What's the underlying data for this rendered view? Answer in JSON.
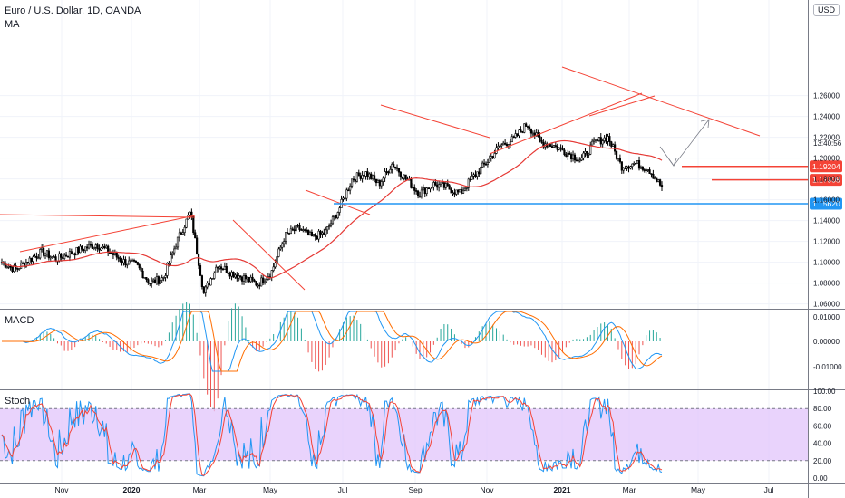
{
  "header": {
    "symbol_title": "Euro / U.S. Dollar, 1D, OANDA",
    "indicator": "MA",
    "currency_button": "USD"
  },
  "panes": {
    "macd_label": "MACD",
    "stoch_label": "Stoch"
  },
  "colors": {
    "candle": "#000000",
    "ma": "#e53935",
    "trendline": "#f44336",
    "support": "#2196f3",
    "macd_line": "#2196f3",
    "signal_line": "#ff6d00",
    "hist_pos": "#26a69a",
    "hist_neg": "#ef5350",
    "k_line": "#2196f3",
    "d_line": "#f44336",
    "stoch_band": "#e1c4fb",
    "projection": "#787b86"
  },
  "chart_data": [
    {
      "type": "candlestick",
      "title": "Euro / U.S. Dollar, 1D, OANDA",
      "x_axis": [
        "Nov",
        "2020",
        "Mar",
        "May",
        "Jul",
        "Sep",
        "Nov",
        "2021",
        "Mar",
        "May",
        "Jul"
      ],
      "y_ticks": [
        "1.26000",
        "1.24000",
        "1.22000",
        "1.20000",
        "1.18000",
        "1.16000",
        "1.14000",
        "1.12000",
        "1.10000",
        "1.08000",
        "1.06000"
      ],
      "ylim": [
        1.05,
        1.27
      ],
      "price_labels": [
        {
          "value": "1.19204",
          "color": "#f44336"
        },
        {
          "value": "1.17908",
          "color": "#f44336"
        },
        {
          "value": "1.15620",
          "color": "#2196f3"
        }
      ],
      "countdown": "13:40:56",
      "close_path": [
        [
          "Oct",
          1.1
        ],
        [
          "Oct",
          1.093
        ],
        [
          "Nov",
          1.102
        ],
        [
          "Nov",
          1.11
        ],
        [
          "Nov",
          1.103
        ],
        [
          "Dec",
          1.108
        ],
        [
          "Dec",
          1.113
        ],
        [
          "2020",
          1.117
        ],
        [
          "Jan",
          1.11
        ],
        [
          "Jan",
          1.101
        ],
        [
          "Feb",
          1.097
        ],
        [
          "Feb",
          1.08
        ],
        [
          "Feb",
          1.085
        ],
        [
          "Mar",
          1.12
        ],
        [
          "Mar",
          1.148
        ],
        [
          "Mar",
          1.07
        ],
        [
          "Mar",
          1.098
        ],
        [
          "Apr",
          1.09
        ],
        [
          "Apr",
          1.085
        ],
        [
          "May",
          1.079
        ],
        [
          "May",
          1.09
        ],
        [
          "Jun",
          1.125
        ],
        [
          "Jun",
          1.133
        ],
        [
          "Jun",
          1.124
        ],
        [
          "Jul",
          1.128
        ],
        [
          "Jul",
          1.15
        ],
        [
          "Jul",
          1.18
        ],
        [
          "Aug",
          1.186
        ],
        [
          "Aug",
          1.175
        ],
        [
          "Sep",
          1.195
        ],
        [
          "Sep",
          1.18
        ],
        [
          "Sep",
          1.166
        ],
        [
          "Oct",
          1.175
        ],
        [
          "Oct",
          1.172
        ],
        [
          "Nov",
          1.166
        ],
        [
          "Nov",
          1.182
        ],
        [
          "Nov",
          1.196
        ],
        [
          "Dec",
          1.212
        ],
        [
          "Dec",
          1.218
        ],
        [
          "2021",
          1.233
        ],
        [
          "Jan",
          1.215
        ],
        [
          "Jan",
          1.212
        ],
        [
          "Feb",
          1.205
        ],
        [
          "Feb",
          1.198
        ],
        [
          "Feb",
          1.215
        ],
        [
          "Mar",
          1.22
        ],
        [
          "Mar",
          1.192
        ],
        [
          "Mar",
          1.195
        ],
        [
          "Mar",
          1.19
        ],
        [
          "Mar",
          1.172
        ]
      ],
      "moving_average_color": "#e53935"
    },
    {
      "type": "line",
      "title": "MACD",
      "y_ticks": [
        "0.01000",
        "0.00000",
        "-0.01000"
      ],
      "series": [
        {
          "name": "",
          "color": "#2196f3"
        },
        {
          "name": "",
          "color": "#ff6d00"
        }
      ]
    },
    {
      "type": "line",
      "title": "Stoch",
      "y_ticks": [
        "100.00",
        "80.00",
        "60.00",
        "40.00",
        "20.00",
        "0.00"
      ],
      "band": [
        20,
        80
      ],
      "series": [
        {
          "name": "",
          "color": "#2196f3"
        },
        {
          "name": "",
          "color": "#f44336"
        }
      ]
    }
  ]
}
